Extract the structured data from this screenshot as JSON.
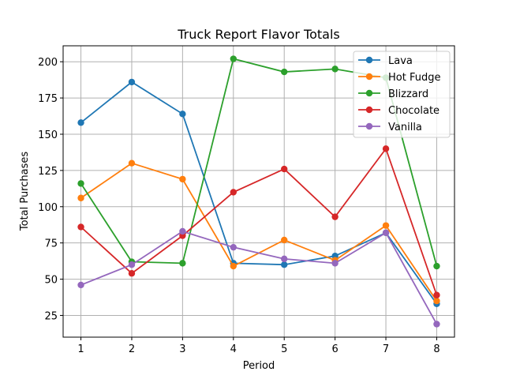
{
  "chart_data": {
    "type": "line",
    "title": "Truck Report Flavor Totals",
    "xlabel": "Period",
    "ylabel": "Total Purchases",
    "x": [
      1,
      2,
      3,
      4,
      5,
      6,
      7,
      8
    ],
    "xlim": [
      0.65,
      8.35
    ],
    "ylim": [
      10,
      211
    ],
    "yticks": [
      25,
      50,
      75,
      100,
      125,
      150,
      175,
      200
    ],
    "grid": true,
    "legend_position": "top-right",
    "series": [
      {
        "name": "Lava",
        "color": "#1f77b4",
        "values": [
          158,
          186,
          164,
          61,
          60,
          66,
          82,
          33
        ]
      },
      {
        "name": "Hot Fudge",
        "color": "#ff7f0e",
        "values": [
          106,
          130,
          119,
          59,
          77,
          63,
          87,
          35
        ]
      },
      {
        "name": "Blizzard",
        "color": "#2ca02c",
        "values": [
          116,
          62,
          61,
          202,
          193,
          195,
          189,
          59
        ]
      },
      {
        "name": "Chocolate",
        "color": "#d62728",
        "values": [
          86,
          54,
          80,
          110,
          126,
          93,
          140,
          39
        ]
      },
      {
        "name": "Vanilla",
        "color": "#9467bd",
        "values": [
          46,
          60,
          83,
          72,
          64,
          61,
          82,
          19
        ]
      }
    ]
  }
}
